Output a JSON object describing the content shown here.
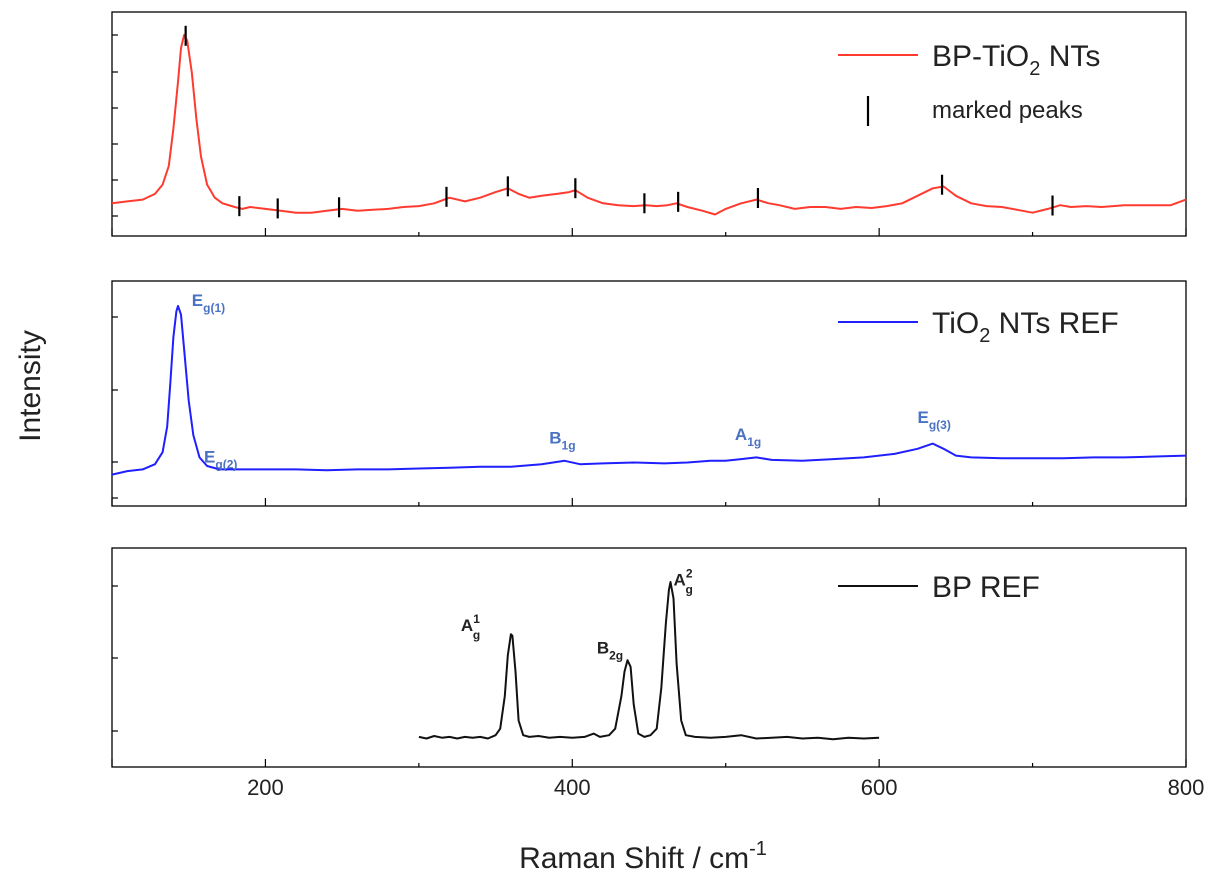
{
  "chart_data": {
    "type": "line",
    "x_axis": {
      "label": "Raman Shift / cm",
      "label_sup": "-1",
      "range": [
        100,
        800
      ],
      "ticks": [
        200,
        400,
        600,
        800
      ]
    },
    "y_axis": {
      "label": "Intensity"
    },
    "panels": [
      {
        "series": {
          "color": "#ff3b30",
          "name_parts": [
            "BP-TiO",
            "2",
            " NTs"
          ],
          "points": [
            [
              100,
              0.1
            ],
            [
              110,
              0.11
            ],
            [
              120,
              0.12
            ],
            [
              128,
              0.15
            ],
            [
              133,
              0.2
            ],
            [
              137,
              0.3
            ],
            [
              140,
              0.5
            ],
            [
              143,
              0.75
            ],
            [
              145,
              0.93
            ],
            [
              147,
              1.0
            ],
            [
              149,
              0.97
            ],
            [
              152,
              0.8
            ],
            [
              155,
              0.55
            ],
            [
              158,
              0.35
            ],
            [
              162,
              0.2
            ],
            [
              167,
              0.13
            ],
            [
              172,
              0.1
            ],
            [
              180,
              0.08
            ],
            [
              185,
              0.07
            ],
            [
              190,
              0.08
            ],
            [
              200,
              0.07
            ],
            [
              210,
              0.06
            ],
            [
              220,
              0.05
            ],
            [
              230,
              0.05
            ],
            [
              240,
              0.06
            ],
            [
              250,
              0.07
            ],
            [
              260,
              0.06
            ],
            [
              270,
              0.065
            ],
            [
              280,
              0.07
            ],
            [
              290,
              0.08
            ],
            [
              300,
              0.085
            ],
            [
              310,
              0.1
            ],
            [
              320,
              0.13
            ],
            [
              330,
              0.11
            ],
            [
              340,
              0.13
            ],
            [
              350,
              0.16
            ],
            [
              358,
              0.18
            ],
            [
              365,
              0.15
            ],
            [
              372,
              0.13
            ],
            [
              380,
              0.14
            ],
            [
              390,
              0.15
            ],
            [
              398,
              0.16
            ],
            [
              402,
              0.17
            ],
            [
              410,
              0.13
            ],
            [
              420,
              0.1
            ],
            [
              430,
              0.09
            ],
            [
              440,
              0.085
            ],
            [
              448,
              0.09
            ],
            [
              455,
              0.085
            ],
            [
              462,
              0.09
            ],
            [
              468,
              0.1
            ],
            [
              475,
              0.08
            ],
            [
              485,
              0.06
            ],
            [
              493,
              0.04
            ],
            [
              500,
              0.07
            ],
            [
              510,
              0.1
            ],
            [
              520,
              0.12
            ],
            [
              528,
              0.1
            ],
            [
              535,
              0.09
            ],
            [
              545,
              0.07
            ],
            [
              555,
              0.08
            ],
            [
              565,
              0.08
            ],
            [
              575,
              0.07
            ],
            [
              585,
              0.08
            ],
            [
              595,
              0.075
            ],
            [
              605,
              0.085
            ],
            [
              615,
              0.1
            ],
            [
              625,
              0.14
            ],
            [
              635,
              0.18
            ],
            [
              642,
              0.19
            ],
            [
              650,
              0.14
            ],
            [
              660,
              0.1
            ],
            [
              670,
              0.085
            ],
            [
              680,
              0.08
            ],
            [
              690,
              0.065
            ],
            [
              700,
              0.05
            ],
            [
              710,
              0.07
            ],
            [
              718,
              0.09
            ],
            [
              725,
              0.08
            ],
            [
              735,
              0.085
            ],
            [
              745,
              0.08
            ],
            [
              760,
              0.09
            ],
            [
              775,
              0.09
            ],
            [
              790,
              0.09
            ],
            [
              800,
              0.12
            ]
          ],
          "markers_x": [
            148,
            183,
            208,
            248,
            318,
            358,
            402,
            447,
            469,
            521,
            641,
            713
          ]
        },
        "legend": {
          "marker_label": "marked peaks"
        }
      },
      {
        "series": {
          "color": "#1f1fff",
          "name_parts": [
            "TiO",
            "2",
            " NTs REF"
          ],
          "points": [
            [
              100,
              0.02
            ],
            [
              110,
              0.04
            ],
            [
              120,
              0.05
            ],
            [
              128,
              0.08
            ],
            [
              133,
              0.15
            ],
            [
              136,
              0.3
            ],
            [
              138,
              0.55
            ],
            [
              140,
              0.82
            ],
            [
              142,
              0.97
            ],
            [
              143,
              1.0
            ],
            [
              145,
              0.95
            ],
            [
              147,
              0.75
            ],
            [
              150,
              0.45
            ],
            [
              153,
              0.25
            ],
            [
              157,
              0.12
            ],
            [
              162,
              0.07
            ],
            [
              170,
              0.05
            ],
            [
              180,
              0.05
            ],
            [
              200,
              0.05
            ],
            [
              220,
              0.05
            ],
            [
              240,
              0.045
            ],
            [
              260,
              0.05
            ],
            [
              280,
              0.05
            ],
            [
              300,
              0.055
            ],
            [
              320,
              0.06
            ],
            [
              340,
              0.065
            ],
            [
              360,
              0.065
            ],
            [
              380,
              0.08
            ],
            [
              395,
              0.1
            ],
            [
              405,
              0.08
            ],
            [
              420,
              0.085
            ],
            [
              440,
              0.09
            ],
            [
              460,
              0.085
            ],
            [
              475,
              0.09
            ],
            [
              490,
              0.1
            ],
            [
              500,
              0.1
            ],
            [
              510,
              0.11
            ],
            [
              520,
              0.12
            ],
            [
              530,
              0.105
            ],
            [
              550,
              0.1
            ],
            [
              570,
              0.11
            ],
            [
              590,
              0.12
            ],
            [
              610,
              0.14
            ],
            [
              625,
              0.17
            ],
            [
              635,
              0.2
            ],
            [
              642,
              0.17
            ],
            [
              650,
              0.13
            ],
            [
              660,
              0.12
            ],
            [
              680,
              0.115
            ],
            [
              700,
              0.115
            ],
            [
              720,
              0.115
            ],
            [
              740,
              0.12
            ],
            [
              760,
              0.12
            ],
            [
              780,
              0.125
            ],
            [
              800,
              0.13
            ]
          ],
          "labels": [
            {
              "text": "E",
              "sub": "g(1)",
              "x": 152,
              "y": 1.0
            },
            {
              "text": "E",
              "sub": "g(2)",
              "x": 160,
              "y": 0.09
            },
            {
              "text": "B",
              "sub": "1g",
              "x": 385,
              "y": 0.2
            },
            {
              "text": "A",
              "sub": "1g",
              "x": 506,
              "y": 0.22
            },
            {
              "text": "E",
              "sub": "g(3)",
              "x": 625,
              "y": 0.32
            }
          ]
        }
      },
      {
        "series": {
          "color": "#111111",
          "name_parts": [
            "BP REF"
          ],
          "points": [
            [
              300,
              0.05
            ],
            [
              305,
              0.04
            ],
            [
              310,
              0.055
            ],
            [
              315,
              0.045
            ],
            [
              320,
              0.05
            ],
            [
              325,
              0.04
            ],
            [
              330,
              0.05
            ],
            [
              335,
              0.045
            ],
            [
              340,
              0.05
            ],
            [
              345,
              0.04
            ],
            [
              350,
              0.06
            ],
            [
              353,
              0.1
            ],
            [
              356,
              0.3
            ],
            [
              358,
              0.55
            ],
            [
              360,
              0.68
            ],
            [
              361,
              0.67
            ],
            [
              363,
              0.45
            ],
            [
              365,
              0.15
            ],
            [
              368,
              0.06
            ],
            [
              372,
              0.05
            ],
            [
              378,
              0.055
            ],
            [
              385,
              0.045
            ],
            [
              392,
              0.05
            ],
            [
              400,
              0.045
            ],
            [
              408,
              0.05
            ],
            [
              414,
              0.07
            ],
            [
              418,
              0.05
            ],
            [
              424,
              0.06
            ],
            [
              428,
              0.1
            ],
            [
              432,
              0.3
            ],
            [
              434,
              0.45
            ],
            [
              436,
              0.52
            ],
            [
              438,
              0.48
            ],
            [
              440,
              0.25
            ],
            [
              443,
              0.07
            ],
            [
              447,
              0.05
            ],
            [
              451,
              0.06
            ],
            [
              455,
              0.1
            ],
            [
              458,
              0.35
            ],
            [
              461,
              0.75
            ],
            [
              463,
              0.95
            ],
            [
              464,
              1.0
            ],
            [
              466,
              0.9
            ],
            [
              468,
              0.5
            ],
            [
              471,
              0.15
            ],
            [
              474,
              0.06
            ],
            [
              480,
              0.05
            ],
            [
              490,
              0.045
            ],
            [
              500,
              0.05
            ],
            [
              510,
              0.06
            ],
            [
              520,
              0.04
            ],
            [
              530,
              0.045
            ],
            [
              540,
              0.05
            ],
            [
              550,
              0.04
            ],
            [
              560,
              0.045
            ],
            [
              570,
              0.035
            ],
            [
              580,
              0.045
            ],
            [
              590,
              0.04
            ],
            [
              600,
              0.045
            ]
          ],
          "labels": [
            {
              "text": "A",
              "sup": "1",
              "sub": "g",
              "x": 340,
              "y": 0.7
            },
            {
              "text": "B",
              "sub": "2g",
              "x": 416,
              "y": 0.56
            },
            {
              "text": "A",
              "sup": "2",
              "sub": "g",
              "x": 466,
              "y": 0.98
            }
          ]
        }
      }
    ]
  }
}
